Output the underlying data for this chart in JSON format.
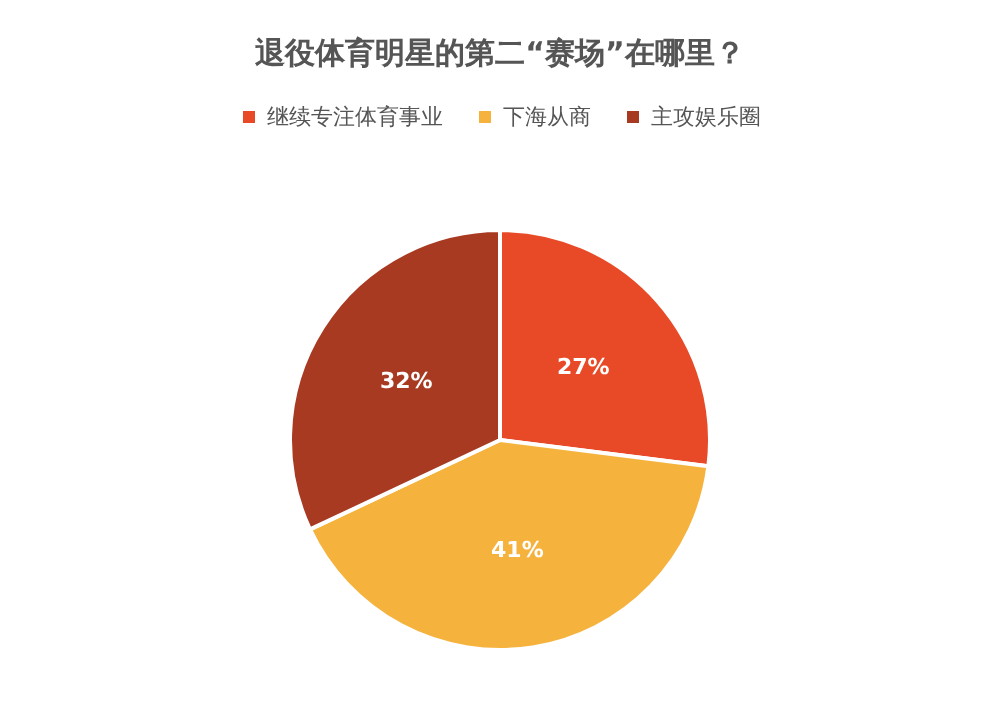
{
  "chart_data": {
    "type": "pie",
    "title": "退役体育明星的第二“赛场”在哪里？",
    "categories": [
      "继续专注体育事业",
      "下海从商",
      "主攻娱乐圈"
    ],
    "values": [
      27,
      41,
      32
    ],
    "colors": [
      "#e84a27",
      "#f5b33d",
      "#a83a22"
    ],
    "value_labels": [
      "27%",
      "41%",
      "32%"
    ],
    "legend": "top"
  }
}
